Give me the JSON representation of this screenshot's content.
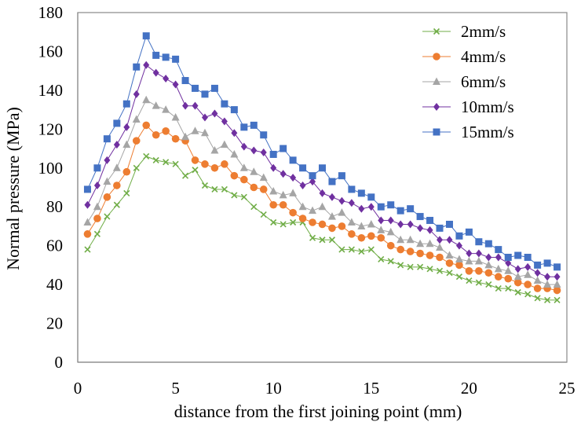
{
  "chart_data": {
    "type": "line",
    "title": "",
    "xlabel": "distance from the first joining point (mm)",
    "ylabel": "Normal pressure (MPa)",
    "xlim": [
      0,
      25
    ],
    "ylim": [
      0,
      180
    ],
    "xticks": [
      0,
      5,
      10,
      15,
      20,
      25
    ],
    "yticks": [
      0,
      20,
      40,
      60,
      80,
      100,
      120,
      140,
      160,
      180
    ],
    "grid": false,
    "legend_position": "top-right",
    "x": [
      0.5,
      1,
      1.5,
      2,
      2.5,
      3,
      3.5,
      4,
      4.5,
      5,
      5.5,
      6,
      6.5,
      7,
      7.5,
      8,
      8.5,
      9,
      9.5,
      10,
      10.5,
      11,
      11.5,
      12,
      12.5,
      13,
      13.5,
      14,
      14.5,
      15,
      15.5,
      16,
      16.5,
      17,
      17.5,
      18,
      18.5,
      19,
      19.5,
      20,
      20.5,
      21,
      21.5,
      22,
      22.5,
      23,
      23.5,
      24,
      24.5
    ],
    "series": [
      {
        "name": "2mm/s",
        "color": "#70ad47",
        "marker": "x",
        "values": [
          58,
          66,
          75,
          81,
          87,
          100,
          106,
          104,
          103,
          102,
          96,
          99,
          91,
          89,
          89,
          86,
          85,
          80,
          76,
          72,
          71,
          72,
          72,
          64,
          63,
          63,
          58,
          58,
          57,
          58,
          53,
          52,
          50,
          49,
          49,
          48,
          47,
          46,
          44,
          42,
          41,
          40,
          38,
          38,
          36,
          35,
          33,
          32,
          32
        ]
      },
      {
        "name": "4mm/s",
        "color": "#ed7d31",
        "marker": "circle",
        "values": [
          66,
          74,
          85,
          91,
          98,
          114,
          122,
          117,
          119,
          115,
          114,
          104,
          102,
          100,
          102,
          96,
          94,
          90,
          89,
          81,
          81,
          77,
          74,
          72,
          71,
          69,
          70,
          66,
          64,
          65,
          64,
          60,
          58,
          57,
          56,
          55,
          54,
          51,
          50,
          47,
          47,
          46,
          44,
          43,
          41,
          40,
          38,
          38,
          37
        ]
      },
      {
        "name": "6mm/s",
        "color": "#a5a5a5",
        "marker": "triangle",
        "values": [
          72,
          80,
          93,
          100,
          112,
          125,
          135,
          132,
          130,
          126,
          116,
          119,
          118,
          109,
          112,
          107,
          100,
          98,
          95,
          88,
          86,
          87,
          80,
          78,
          80,
          75,
          77,
          72,
          70,
          71,
          68,
          67,
          63,
          63,
          61,
          61,
          59,
          55,
          53,
          52,
          52,
          50,
          48,
          47,
          44,
          45,
          42,
          40,
          40
        ]
      },
      {
        "name": "10mm/s",
        "color": "#7030a0",
        "marker": "diamond",
        "values": [
          81,
          91,
          104,
          112,
          121,
          138,
          153,
          149,
          146,
          143,
          132,
          132,
          126,
          128,
          124,
          118,
          111,
          109,
          108,
          100,
          97,
          95,
          91,
          93,
          87,
          85,
          83,
          82,
          79,
          80,
          73,
          73,
          71,
          71,
          69,
          68,
          63,
          63,
          60,
          56,
          56,
          54,
          54,
          51,
          48,
          49,
          46,
          44,
          44
        ]
      },
      {
        "name": "15mm/s",
        "color": "#4472c4",
        "marker": "square",
        "values": [
          89,
          100,
          115,
          123,
          133,
          152,
          168,
          158,
          157,
          156,
          145,
          141,
          138,
          141,
          133,
          130,
          121,
          122,
          117,
          107,
          110,
          104,
          100,
          96,
          100,
          93,
          96,
          89,
          87,
          85,
          80,
          81,
          78,
          79,
          75,
          73,
          69,
          71,
          65,
          67,
          62,
          61,
          58,
          54,
          55,
          54,
          50,
          51,
          49
        ]
      }
    ]
  }
}
